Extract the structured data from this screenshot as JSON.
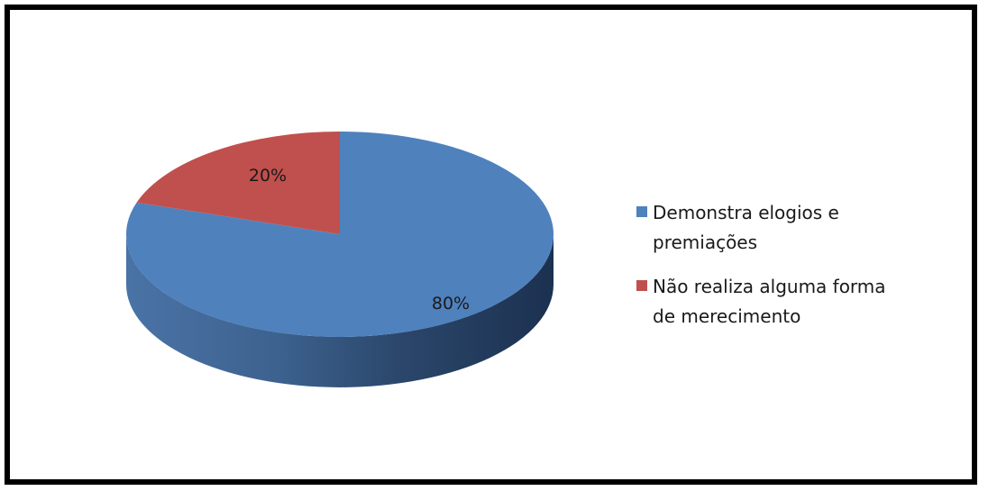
{
  "chart_data": {
    "type": "pie",
    "title": "",
    "categories": [
      "Demonstra elogios e premiações",
      "Não realiza alguma forma de merecimento"
    ],
    "values": [
      80,
      20
    ],
    "data_labels": [
      "80%",
      "20%"
    ],
    "colors": [
      "#4f81bd",
      "#c0504d"
    ],
    "legend_lines": [
      [
        "Demonstra elogios e",
        "premiações"
      ],
      [
        "Não realiza alguma  forma",
        "de merecimento"
      ]
    ],
    "legend_position": "right",
    "style": "3d"
  }
}
